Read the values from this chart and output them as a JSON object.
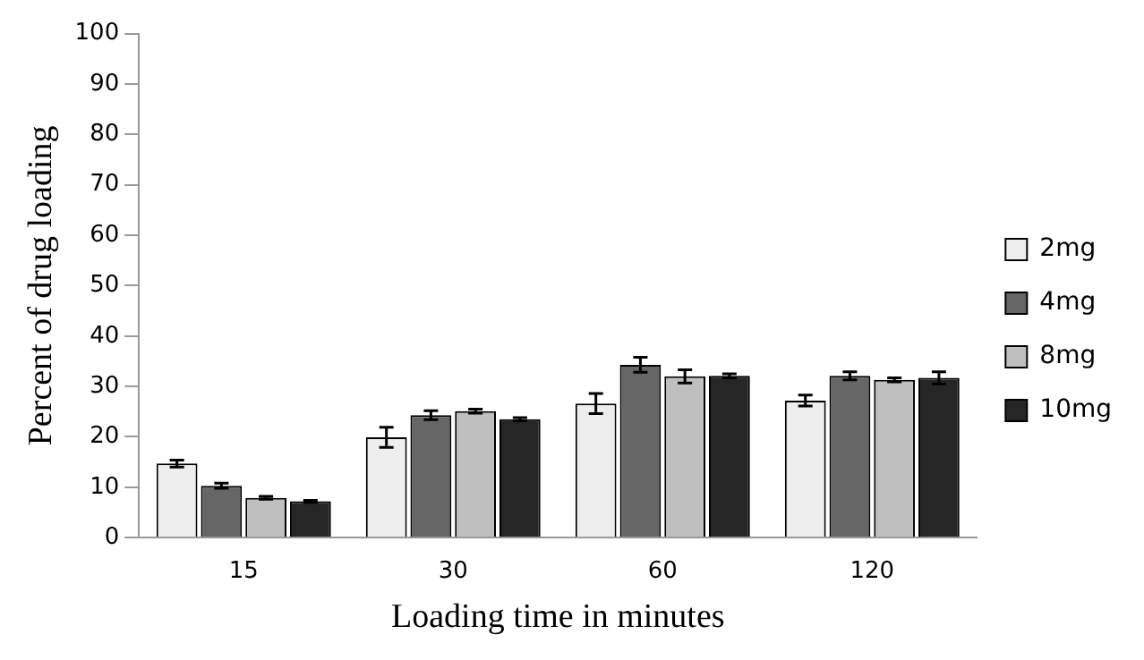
{
  "chart_data": {
    "type": "bar",
    "xlabel": "Loading time in minutes",
    "ylabel": "Percent of drug loading",
    "categories": [
      "15",
      "30",
      "60",
      "120"
    ],
    "series": [
      {
        "name": "2mg",
        "color": "#eeeeee",
        "values": [
          14.7,
          19.9,
          26.6,
          27.2
        ],
        "errors": [
          0.7,
          2,
          2,
          1.1
        ]
      },
      {
        "name": "4mg",
        "color": "#666666",
        "values": [
          10.3,
          24.3,
          34.3,
          32.1
        ],
        "errors": [
          0.5,
          0.9,
          1.5,
          0.8
        ]
      },
      {
        "name": "8mg",
        "color": "#bfbfbf",
        "values": [
          7.9,
          25.1,
          32.0,
          31.3
        ],
        "errors": [
          0.3,
          0.4,
          1.3,
          0.4
        ]
      },
      {
        "name": "10mg",
        "color": "#262626",
        "values": [
          7.2,
          23.5,
          32.1,
          31.7
        ],
        "errors": [
          0.2,
          0.3,
          0.4,
          1.2
        ]
      }
    ],
    "ylim": [
      0,
      100
    ],
    "yticks": [
      0,
      10,
      20,
      30,
      40,
      50,
      60,
      70,
      80,
      90,
      100
    ],
    "grid": false,
    "legend": "right"
  }
}
